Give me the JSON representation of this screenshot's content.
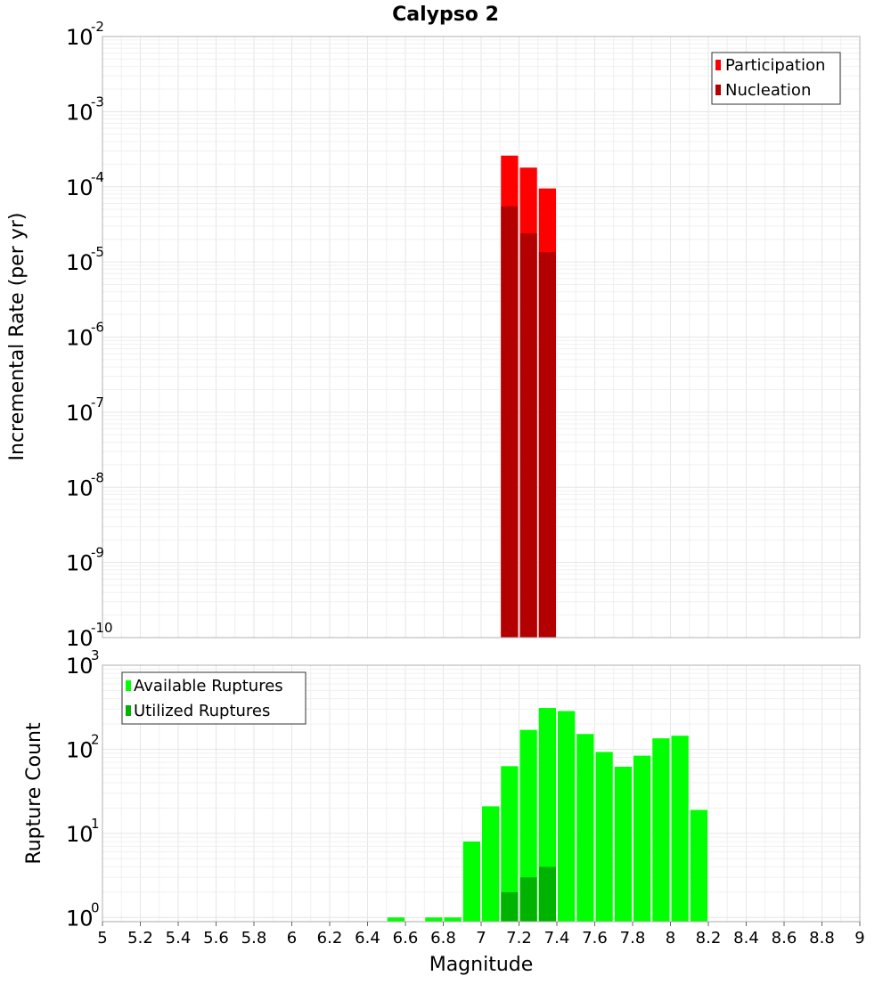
{
  "chart_data": {
    "title": "Calypso 2",
    "xlabel": "Magnitude",
    "xlim": [
      5,
      9
    ],
    "x_ticks": [
      "5",
      "5.2",
      "5.4",
      "5.6",
      "5.8",
      "6",
      "6.2",
      "6.4",
      "6.6",
      "6.8",
      "7",
      "7.2",
      "7.4",
      "7.6",
      "7.8",
      "8",
      "8.2",
      "8.4",
      "8.6",
      "8.8",
      "9"
    ],
    "colors": {
      "participation": "#ff0000",
      "nucleation": "#b30000",
      "available": "#00ff00",
      "utilized": "#00b300",
      "grid": "#e6e6e6",
      "frame": "#b0b0b0"
    },
    "panels": [
      {
        "type": "bar",
        "yscale": "log",
        "ylabel": "Incremental Rate (per yr)",
        "ylim_exponents": [
          -10,
          -2
        ],
        "y_tick_base": "10",
        "y_tick_exponents": [
          "-10",
          "-9",
          "-8",
          "-7",
          "-6",
          "-5",
          "-4",
          "-3",
          "-2"
        ],
        "legend": {
          "position": "top-right",
          "entries": [
            "Participation",
            "Nucleation"
          ]
        },
        "series": [
          {
            "name": "Participation",
            "color_key": "participation",
            "x": [
              7.15,
              7.25,
              7.35
            ],
            "values": [
              0.00026,
              0.00018,
              9.5e-05
            ]
          },
          {
            "name": "Nucleation",
            "color_key": "nucleation",
            "x": [
              7.15,
              7.25,
              7.35
            ],
            "values": [
              5.5e-05,
              2.4e-05,
              1.35e-05
            ]
          }
        ]
      },
      {
        "type": "bar",
        "yscale": "log",
        "ylabel": "Rupture Count",
        "ylim_exponents": [
          -0.05,
          3
        ],
        "y_tick_base": "10",
        "y_tick_exponents": [
          "0",
          "1",
          "2",
          "3"
        ],
        "legend": {
          "position": "top-left",
          "entries": [
            "Available Ruptures",
            "Utilized Ruptures"
          ]
        },
        "series": [
          {
            "name": "Available Ruptures",
            "color_key": "available",
            "x": [
              6.55,
              6.75,
              6.85,
              6.95,
              7.05,
              7.15,
              7.25,
              7.35,
              7.45,
              7.55,
              7.65,
              7.75,
              7.85,
              7.95,
              8.05,
              8.15
            ],
            "values": [
              1,
              1,
              1,
              8,
              21,
              63,
              170,
              310,
              285,
              152,
              93,
              62,
              84,
              135,
              145,
              19
            ]
          },
          {
            "name": "Utilized Ruptures",
            "color_key": "utilized",
            "x": [
              7.15,
              7.25,
              7.35
            ],
            "values": [
              2,
              3,
              4
            ]
          }
        ]
      }
    ]
  }
}
